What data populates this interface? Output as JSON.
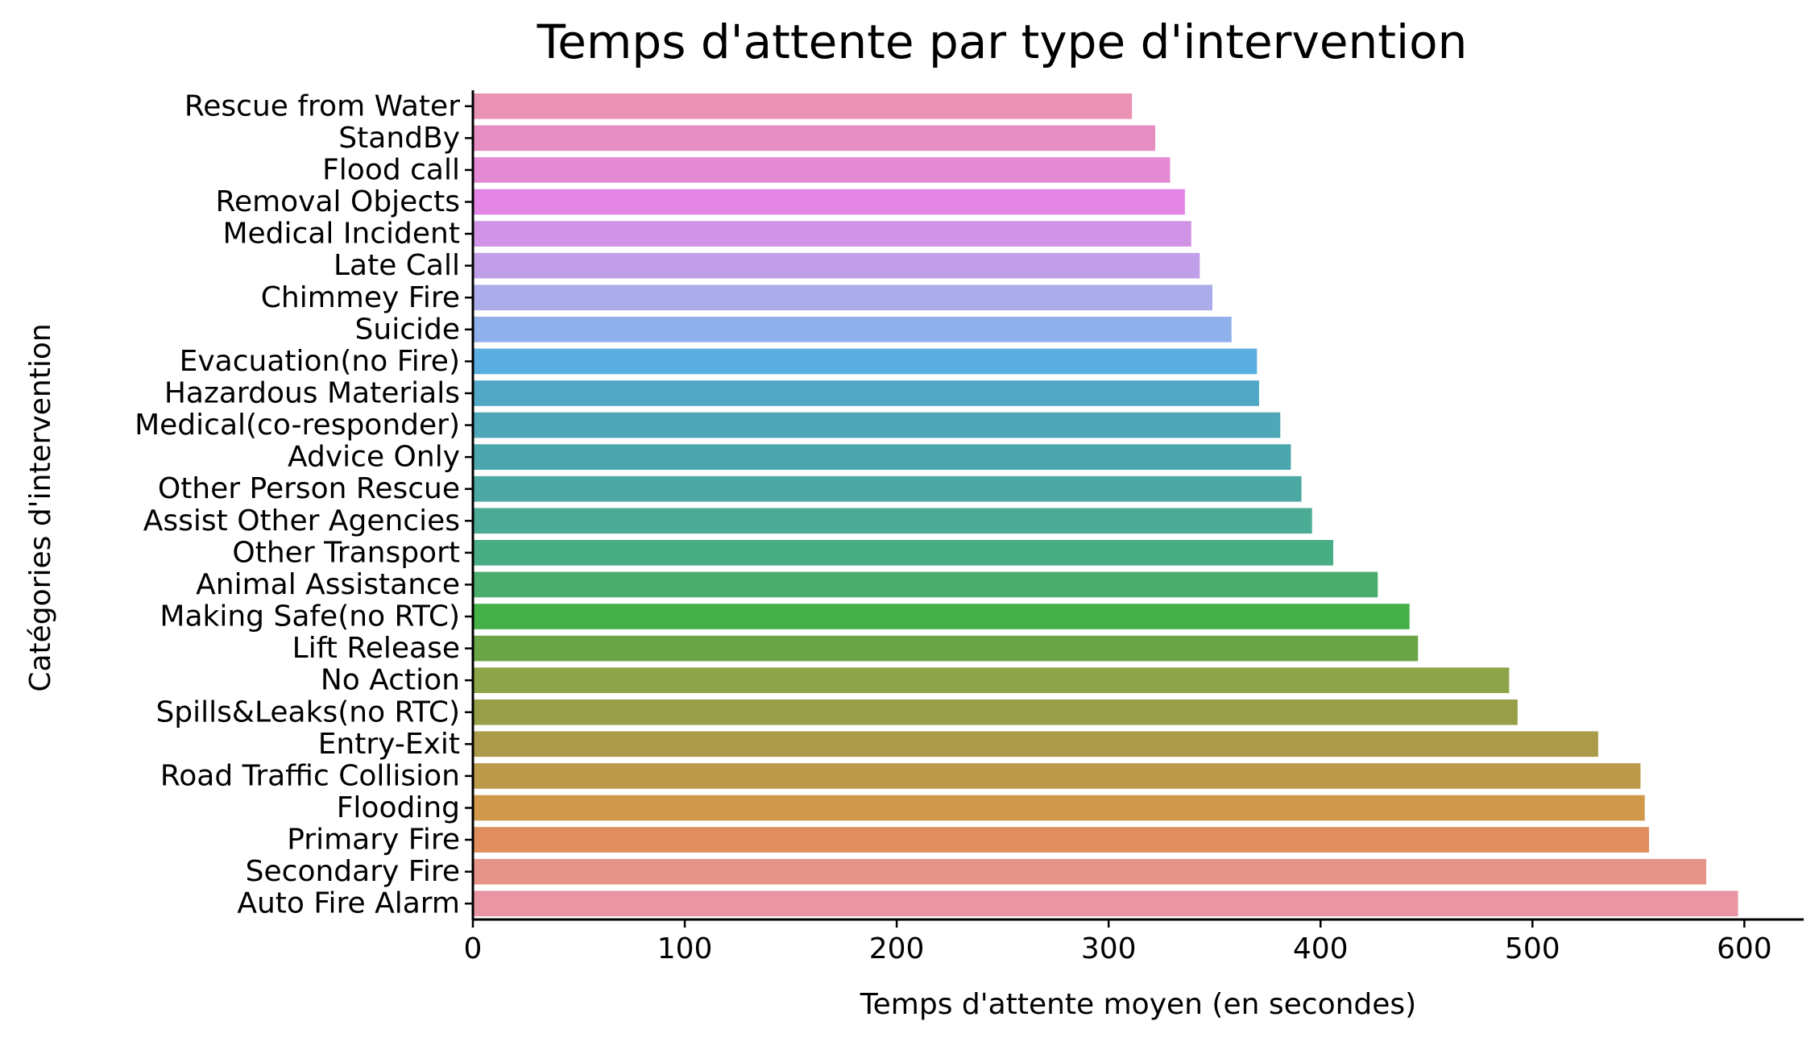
{
  "chart_data": {
    "type": "bar",
    "orientation": "horizontal",
    "title": "Temps d'attente par type d'intervention",
    "xlabel": "Temps d'attente moyen (en secondes)",
    "ylabel": "Catégories d'intervention",
    "xlim": [
      0,
      628
    ],
    "xticks": [
      0,
      100,
      200,
      300,
      400,
      500,
      600
    ],
    "grid": false,
    "legend": "none",
    "categories": [
      "Rescue from Water",
      "StandBy",
      "Flood call",
      "Removal Objects",
      "Medical Incident",
      "Late Call",
      "Chimmey Fire",
      "Suicide",
      "Evacuation(no Fire)",
      "Hazardous Materials",
      "Medical(co-responder)",
      "Advice Only",
      "Other Person Rescue",
      "Assist Other Agencies",
      "Other Transport",
      "Animal Assistance",
      "Making Safe(no RTC)",
      "Lift Release",
      "No Action",
      "Spills&Leaks(no RTC)",
      "Entry-Exit",
      "Road Traffic Collision",
      "Flooding",
      "Primary Fire",
      "Secondary Fire",
      "Auto Fire Alarm"
    ],
    "values": [
      311,
      322,
      329,
      336,
      339,
      343,
      349,
      358,
      370,
      371,
      381,
      386,
      391,
      396,
      406,
      427,
      442,
      446,
      489,
      493,
      531,
      551,
      553,
      555,
      582,
      597
    ],
    "colors": [
      "#e992b4",
      "#e68dc2",
      "#e48ad2",
      "#e386e6",
      "#d193e5",
      "#c19fe8",
      "#abadea",
      "#8fb0ea",
      "#5aaee0",
      "#50a8c6",
      "#4ea6b7",
      "#4ba6ad",
      "#4ca8a2",
      "#4cab94",
      "#48ac84",
      "#4aad6e",
      "#46b048",
      "#6ba447",
      "#8ea448",
      "#969f47",
      "#aa9a49",
      "#bc9a4c",
      "#cf984b",
      "#e18e5f",
      "#e79488",
      "#ea95a3"
    ]
  }
}
